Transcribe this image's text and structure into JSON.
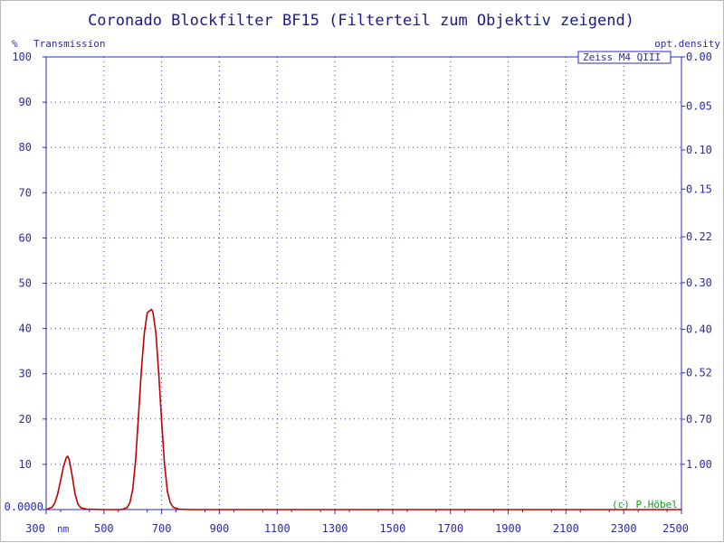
{
  "chart_data": {
    "type": "line",
    "title": "Coronado Blockfilter BF15 (Filterteil zum Objektiv zeigend)",
    "ylabel_unit": "%",
    "ylabel": "Transmission",
    "y2label": "opt.density",
    "xunit": "nm",
    "legend": "Zeiss M4 QIII",
    "copyright": "(c) P.Höbel",
    "xlim": [
      300,
      2500
    ],
    "ylim": [
      0,
      100
    ],
    "x_ticks": [
      "300",
      "500",
      "700",
      "900",
      "1100",
      "1300",
      "1500",
      "1700",
      "1900",
      "2100",
      "2300",
      "2500"
    ],
    "y_ticks": [
      "0.0000",
      "10",
      "20",
      "30",
      "40",
      "50",
      "60",
      "70",
      "80",
      "90",
      "100"
    ],
    "y2_ticks": [
      "1.00",
      "0.70",
      "0.52",
      "0.40",
      "0.30",
      "0.22",
      "0.15",
      "0.10",
      "0.05",
      "0.00"
    ],
    "series": [
      {
        "color": "#c00000",
        "x": [
          300,
          320,
          330,
          340,
          350,
          360,
          370,
          375,
          380,
          390,
          400,
          410,
          420,
          440,
          500,
          560,
          580,
          590,
          600,
          610,
          620,
          630,
          640,
          650,
          660,
          665,
          670,
          680,
          690,
          700,
          710,
          720,
          730,
          740,
          760,
          800,
          1000,
          1500,
          2000,
          2500
        ],
        "y": [
          0,
          0.5,
          1.5,
          3.5,
          6.5,
          9.5,
          11.5,
          11.8,
          11.0,
          7.5,
          3.5,
          1.2,
          0.4,
          0.1,
          0,
          0,
          0.4,
          1.5,
          4.5,
          11.0,
          21.0,
          31.0,
          39.0,
          43.5,
          44.0,
          44.2,
          43.5,
          39.0,
          30.0,
          19.5,
          10.0,
          4.0,
          1.5,
          0.5,
          0.1,
          0,
          0,
          0,
          0,
          0
        ]
      }
    ]
  }
}
